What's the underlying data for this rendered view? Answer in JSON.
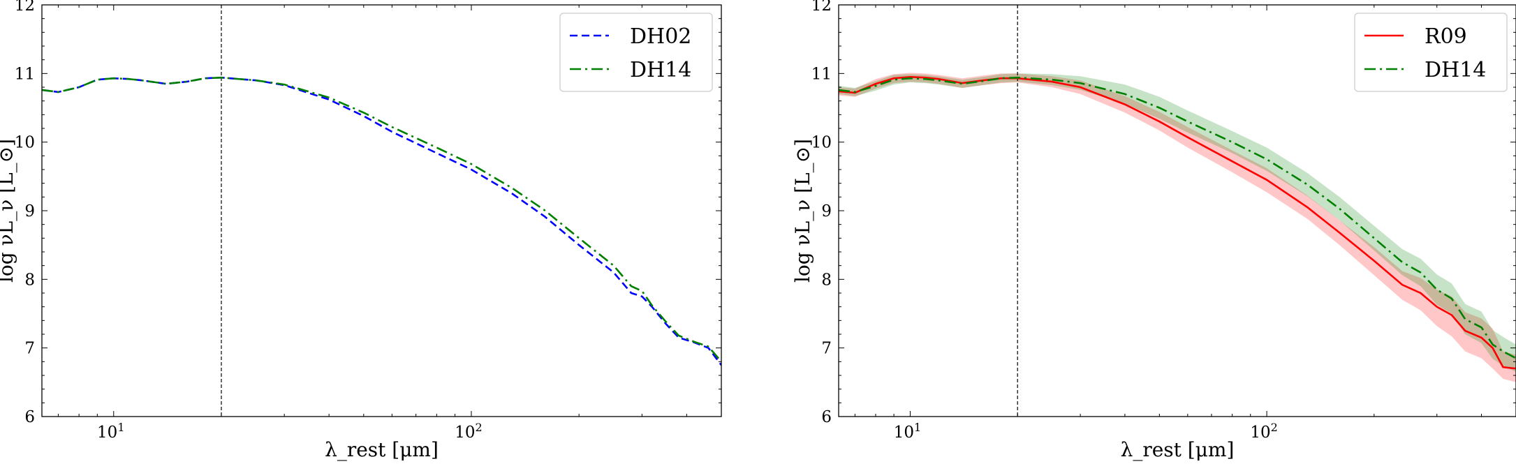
{
  "chart_data": [
    {
      "type": "line",
      "xscale": "log",
      "xlim": [
        6.3,
        500
      ],
      "ylim": [
        6,
        12
      ],
      "xticks": [
        {
          "value": 10,
          "label": "10^1"
        },
        {
          "value": 100,
          "label": "10^2"
        }
      ],
      "yticks": [
        6,
        7,
        8,
        9,
        10,
        11,
        12
      ],
      "xlabel": "λ_rest [μm]",
      "ylabel": "log νL_ν [L_⊙]",
      "vline": 20,
      "legend_position": "top-right",
      "series": [
        {
          "name": "DH02",
          "color": "#0000ff",
          "style": "dashed",
          "x": [
            6.3,
            7,
            8,
            9,
            10,
            11,
            12,
            14,
            16,
            18,
            20,
            25,
            30,
            40,
            50,
            60,
            80,
            100,
            130,
            160,
            200,
            250,
            280,
            300,
            320,
            350,
            380,
            420,
            460,
            500
          ],
          "y": [
            10.76,
            10.73,
            10.8,
            10.91,
            10.93,
            10.92,
            10.9,
            10.85,
            10.88,
            10.93,
            10.94,
            10.9,
            10.83,
            10.62,
            10.38,
            10.15,
            9.84,
            9.6,
            9.25,
            8.92,
            8.5,
            8.1,
            7.8,
            7.75,
            7.6,
            7.35,
            7.15,
            7.08,
            7.0,
            6.75
          ]
        },
        {
          "name": "DH14",
          "color": "#008000",
          "style": "dashdot",
          "x": [
            6.3,
            7,
            8,
            9,
            10,
            11,
            12,
            14,
            16,
            18,
            20,
            25,
            30,
            40,
            50,
            60,
            80,
            100,
            130,
            160,
            200,
            250,
            280,
            300,
            320,
            350,
            380,
            420,
            460,
            500
          ],
          "y": [
            10.76,
            10.73,
            10.8,
            10.91,
            10.93,
            10.92,
            10.9,
            10.85,
            10.88,
            10.93,
            10.94,
            10.9,
            10.84,
            10.65,
            10.43,
            10.22,
            9.92,
            9.68,
            9.33,
            9.01,
            8.6,
            8.2,
            7.9,
            7.83,
            7.62,
            7.38,
            7.18,
            7.09,
            7.02,
            6.8
          ]
        }
      ]
    },
    {
      "type": "line",
      "xscale": "log",
      "xlim": [
        6.3,
        500
      ],
      "ylim": [
        6,
        12
      ],
      "xticks": [
        {
          "value": 10,
          "label": "10^1"
        },
        {
          "value": 100,
          "label": "10^2"
        }
      ],
      "yticks": [
        6,
        7,
        8,
        9,
        10,
        11,
        12
      ],
      "xlabel": "λ_rest [μm]",
      "ylabel": "log νL_ν [L_⊙]",
      "vline": 20,
      "legend_position": "top-right",
      "series": [
        {
          "name": "R09",
          "color": "#ff0000",
          "style": "solid",
          "x": [
            6.3,
            7,
            8,
            9,
            10,
            11,
            12,
            14,
            16,
            18,
            20,
            25,
            30,
            40,
            50,
            60,
            80,
            100,
            130,
            160,
            200,
            240,
            270,
            300,
            330,
            360,
            400,
            430,
            460,
            500
          ],
          "y": [
            10.74,
            10.72,
            10.85,
            10.93,
            10.95,
            10.94,
            10.92,
            10.86,
            10.9,
            10.93,
            10.93,
            10.88,
            10.8,
            10.55,
            10.3,
            10.07,
            9.72,
            9.45,
            9.05,
            8.68,
            8.27,
            7.92,
            7.8,
            7.6,
            7.48,
            7.25,
            7.15,
            7.0,
            6.72,
            6.7
          ],
          "band": {
            "lower": [
              10.68,
              10.66,
              10.78,
              10.86,
              10.88,
              10.87,
              10.85,
              10.79,
              10.83,
              10.86,
              10.87,
              10.8,
              10.7,
              10.43,
              10.17,
              9.92,
              9.56,
              9.27,
              8.88,
              8.5,
              8.06,
              7.7,
              7.55,
              7.32,
              7.17,
              6.95,
              6.85,
              6.7,
              6.55,
              6.5
            ],
            "upper": [
              10.8,
              10.78,
              10.92,
              10.99,
              11.01,
              11.0,
              10.98,
              10.93,
              10.97,
              11.0,
              11.0,
              10.96,
              10.9,
              10.67,
              10.44,
              10.22,
              9.88,
              9.62,
              9.22,
              8.86,
              8.47,
              8.12,
              8.02,
              7.85,
              7.75,
              7.52,
              7.43,
              7.28,
              6.95,
              6.9
            ]
          }
        },
        {
          "name": "DH14",
          "color": "#008000",
          "style": "dashdot",
          "x": [
            6.3,
            7,
            8,
            9,
            10,
            11,
            12,
            14,
            16,
            18,
            20,
            25,
            30,
            40,
            50,
            60,
            80,
            100,
            130,
            160,
            200,
            240,
            270,
            300,
            330,
            360,
            400,
            430,
            460,
            500
          ],
          "y": [
            10.76,
            10.73,
            10.82,
            10.91,
            10.93,
            10.92,
            10.9,
            10.85,
            10.89,
            10.93,
            10.94,
            10.91,
            10.86,
            10.7,
            10.5,
            10.3,
            10.0,
            9.75,
            9.38,
            9.03,
            8.6,
            8.25,
            8.1,
            7.85,
            7.72,
            7.42,
            7.3,
            7.05,
            6.95,
            6.85
          ],
          "band": {
            "lower": [
              10.7,
              10.67,
              10.75,
              10.84,
              10.87,
              10.86,
              10.84,
              10.79,
              10.83,
              10.87,
              10.88,
              10.83,
              10.76,
              10.56,
              10.34,
              10.14,
              9.84,
              9.58,
              9.21,
              8.86,
              8.42,
              8.06,
              7.9,
              7.63,
              7.5,
              7.2,
              7.07,
              6.84,
              6.74,
              6.65
            ],
            "upper": [
              10.82,
              10.79,
              10.89,
              10.98,
              10.99,
              10.98,
              10.96,
              10.91,
              10.95,
              10.99,
              11.0,
              10.99,
              10.96,
              10.84,
              10.66,
              10.46,
              10.16,
              9.92,
              9.55,
              9.2,
              8.78,
              8.44,
              8.3,
              8.07,
              7.94,
              7.64,
              7.53,
              7.26,
              7.16,
              7.05
            ]
          }
        }
      ]
    }
  ]
}
